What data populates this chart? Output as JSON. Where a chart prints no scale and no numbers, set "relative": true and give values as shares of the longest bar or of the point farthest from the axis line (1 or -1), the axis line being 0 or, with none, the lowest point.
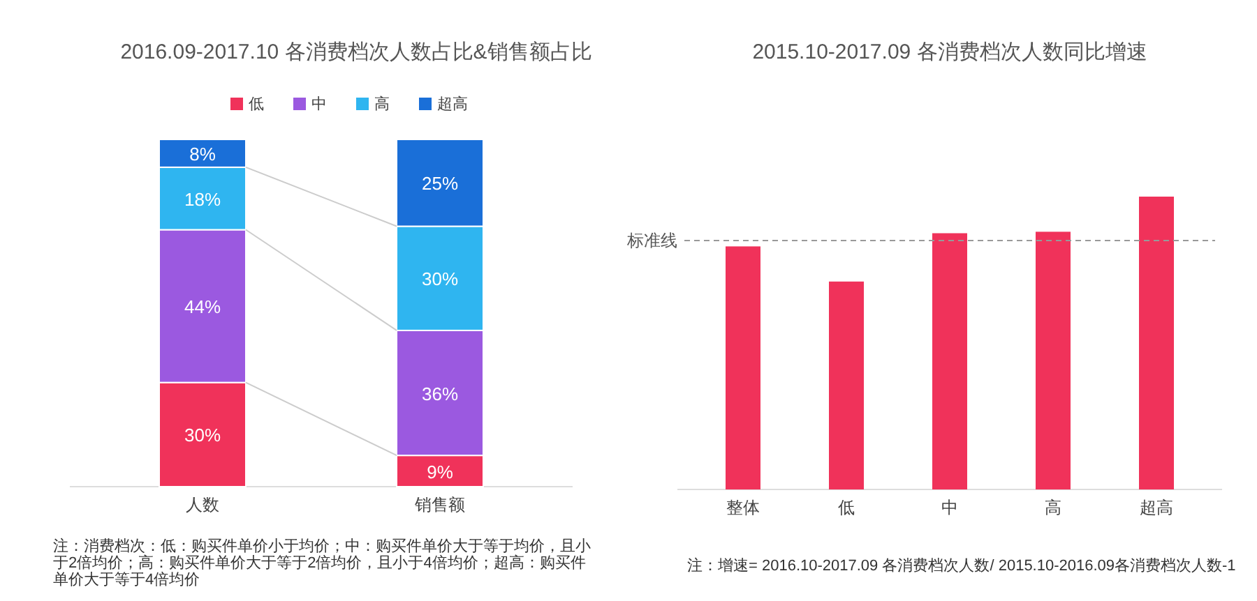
{
  "chart_data": [
    {
      "type": "bar",
      "title": "2016.09-2017.10 各消费档次人数占比&销售额占比",
      "categories": [
        "人数",
        "销售额"
      ],
      "stacked": true,
      "legend": "top",
      "series": [
        {
          "name": "低",
          "color": "#f0325a",
          "values": [
            30,
            9
          ],
          "value_labels": [
            "30%",
            "9%"
          ]
        },
        {
          "name": "中",
          "color": "#9b59e0",
          "values": [
            44,
            36
          ],
          "value_labels": [
            "44%",
            "36%"
          ]
        },
        {
          "name": "高",
          "color": "#2fb5f0",
          "values": [
            18,
            30
          ],
          "value_labels": [
            "18%",
            "30%"
          ]
        },
        {
          "name": "超高",
          "color": "#1a6fd8",
          "values": [
            8,
            25
          ],
          "value_labels": [
            "8%",
            "25%"
          ]
        }
      ],
      "annotations": [
        "注：消费档次：低：购买件单价小于均价；中：购买件单价大于等于均价，且小于2倍均价；高：购买件单价大于等于2倍均价，且小于4倍均价；超高：购买件单价大于等于4倍均价"
      ]
    },
    {
      "type": "bar",
      "title": "2015.10-2017.09 各消费档次人数同比增速",
      "categories": [
        "整体",
        "低",
        "中",
        "高",
        "超高"
      ],
      "relative": true,
      "color": "#f0325a",
      "values": [
        0.83,
        0.71,
        0.875,
        0.88,
        1
      ],
      "ref_lines": [
        {
          "axis": "y",
          "value": 0.85,
          "label": "标准线",
          "color": "#999999",
          "line_style": "dashed"
        }
      ],
      "annotations": [
        "注：增速= 2016.10-2017.09 各消费档次人数/ 2015.10-2016.09各消费档次人数-1"
      ]
    }
  ]
}
